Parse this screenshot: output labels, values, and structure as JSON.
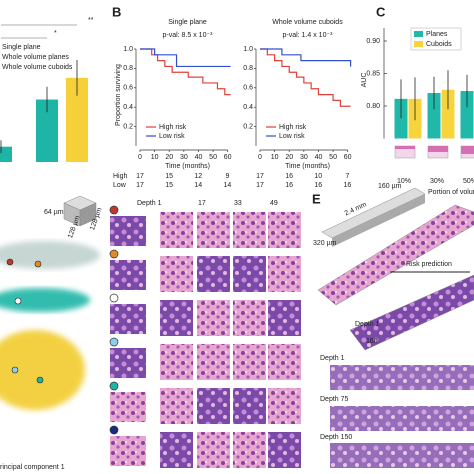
{
  "panel_labels": [
    "B",
    "C",
    "E"
  ],
  "chart_data": [
    {
      "type": "bar",
      "annotations": [
        "**",
        "*"
      ],
      "categories": [
        null
      ],
      "ylim": [
        0,
        0.8
      ],
      "series": [
        {
          "name": "Single plane",
          "color": "#1fb5a6",
          "values": [
            0.12
          ],
          "errors": [
            0.05
          ]
        },
        {
          "name": "Whole volume planes",
          "color": "#1fb5a6",
          "values": [
            0.49
          ],
          "errors": [
            0.1
          ]
        },
        {
          "name": "Whole volume cuboids",
          "color": "#f5d03b",
          "values": [
            0.66
          ],
          "errors": [
            0.14
          ]
        }
      ]
    },
    {
      "type": "line",
      "step": true,
      "title": "Single plane",
      "subtitle": "p-val: 8.5 x 10⁻³",
      "ylabel": "Proportion surviving",
      "xlabel": "Time (months)",
      "xlim": [
        0,
        65
      ],
      "xticks": [
        0,
        10,
        20,
        30,
        40,
        50,
        60
      ],
      "ylim": [
        0,
        1
      ],
      "yticks": [
        0.2,
        0.4,
        0.6,
        0.8,
        {
          "value": 1,
          "label": "1.0"
        }
      ],
      "series": [
        {
          "name": "High risk",
          "color": "#e0403a",
          "x": [
            0,
            8,
            12,
            17,
            22,
            27,
            33,
            38,
            43,
            48,
            53,
            58,
            62
          ],
          "values": [
            1,
            0.94,
            0.88,
            0.82,
            0.76,
            0.76,
            0.71,
            0.71,
            0.65,
            0.65,
            0.59,
            0.53,
            0.53
          ]
        },
        {
          "name": "Low risk",
          "color": "#3050d0",
          "x": [
            0,
            10,
            25,
            62
          ],
          "values": [
            1,
            0.94,
            0.82,
            0.82
          ]
        }
      ],
      "at_risk": [
        {
          "label": "High",
          "values": [
            17,
            15,
            12,
            9
          ]
        },
        {
          "label": "Low",
          "values": [
            17,
            15,
            14,
            14
          ]
        }
      ]
    },
    {
      "type": "line",
      "step": true,
      "title": "Whole volume cuboids",
      "subtitle": "p-val: 1.4 x 10⁻³",
      "xlabel": "Time (months)",
      "xlim": [
        0,
        65
      ],
      "xticks": [
        0,
        10,
        20,
        30,
        40,
        50,
        60
      ],
      "ylim": [
        0,
        1
      ],
      "yticks": [
        0.2,
        0.4,
        0.6,
        0.8,
        {
          "value": 1,
          "label": "1.0"
        }
      ],
      "series": [
        {
          "name": "High risk",
          "color": "#e0403a",
          "x": [
            0,
            5,
            10,
            15,
            20,
            25,
            30,
            35,
            40,
            45,
            50,
            55,
            62
          ],
          "values": [
            1,
            0.94,
            0.88,
            0.82,
            0.76,
            0.71,
            0.65,
            0.59,
            0.53,
            0.53,
            0.47,
            0.41,
            0.41
          ]
        },
        {
          "name": "Low risk",
          "color": "#3050d0",
          "x": [
            0,
            15,
            28,
            62
          ],
          "values": [
            1,
            0.94,
            0.88,
            0.82
          ]
        }
      ],
      "at_risk": [
        {
          "label": "High",
          "values": [
            17,
            16,
            10,
            7
          ]
        },
        {
          "label": "Low",
          "values": [
            17,
            16,
            16,
            16
          ]
        }
      ]
    },
    {
      "type": "bar",
      "ylabel": "AUC",
      "xlabel": "Portion of volume",
      "categories": [
        "10%",
        "30%",
        "50%"
      ],
      "ylim": [
        0.75,
        0.92
      ],
      "yticks": [
        {
          "value": 0.8,
          "label": "0.80"
        },
        {
          "value": 0.85,
          "label": "0.85"
        },
        {
          "value": 0.9,
          "label": "0.90"
        }
      ],
      "series": [
        {
          "name": "Planes",
          "color": "#20b8a8",
          "values": [
            0.811,
            0.82,
            0.823
          ],
          "errors": [
            0.03,
            0.025,
            0.025
          ]
        },
        {
          "name": "Cuboids",
          "color": "#f7d33c",
          "values": [
            0.811,
            0.825,
            0.845
          ],
          "errors": [
            0.033,
            0.03,
            0.04
          ]
        }
      ]
    }
  ],
  "panel_d": {
    "scale": [
      "64 µm",
      "128 µm",
      "128 µm"
    ],
    "depths": [
      "Depth 1",
      "17",
      "33",
      "49"
    ],
    "axis_label": "rincipal component 1"
  },
  "panel_e": {
    "dims": [
      "160 µm",
      "2.4 mm",
      "320 µm"
    ],
    "arrow_label": "Risk prediction",
    "inset": [
      "Depth 1",
      "160"
    ],
    "strips": [
      "Depth 1",
      "Depth 75",
      "Depth 150"
    ]
  }
}
